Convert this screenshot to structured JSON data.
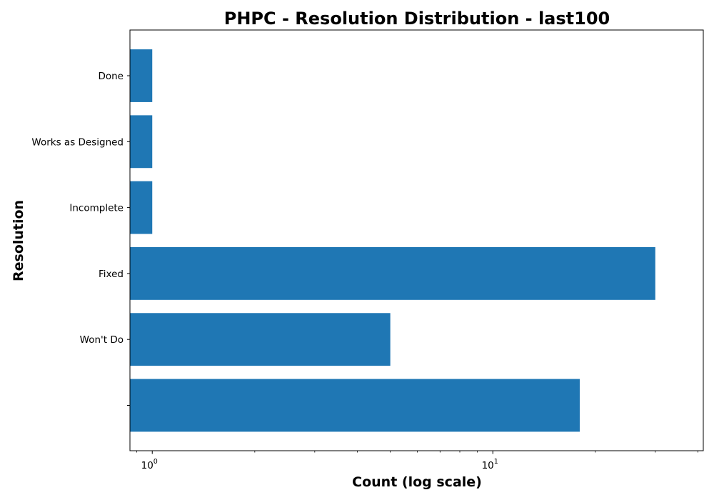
{
  "chart_data": {
    "type": "bar",
    "orientation": "horizontal",
    "title": "PHPC - Resolution Distribution - last100",
    "xlabel": "Count (log scale)",
    "ylabel": "Resolution",
    "x_scale": "log",
    "xlim": [
      0.86,
      41.5
    ],
    "x_ticks": [
      {
        "base": "10",
        "exp": "0",
        "value": 1
      },
      {
        "base": "10",
        "exp": "1",
        "value": 10
      }
    ],
    "categories": [
      "",
      "Won't Do",
      "Fixed",
      "Incomplete",
      "Works as Designed",
      "Done"
    ],
    "values": [
      18,
      5,
      30,
      1,
      1,
      1
    ],
    "bar_color": "#1f77b4",
    "grid": false,
    "legend": "none"
  }
}
